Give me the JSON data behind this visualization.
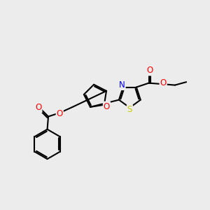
{
  "bg_color": "#ececec",
  "bond_color": "#000000",
  "atom_colors": {
    "O": "#ff0000",
    "N": "#0000ff",
    "S": "#cccc00",
    "C": "#000000"
  },
  "bond_width": 1.5,
  "font_size": 8.5,
  "figsize": [
    3.0,
    3.0
  ],
  "dpi": 100
}
